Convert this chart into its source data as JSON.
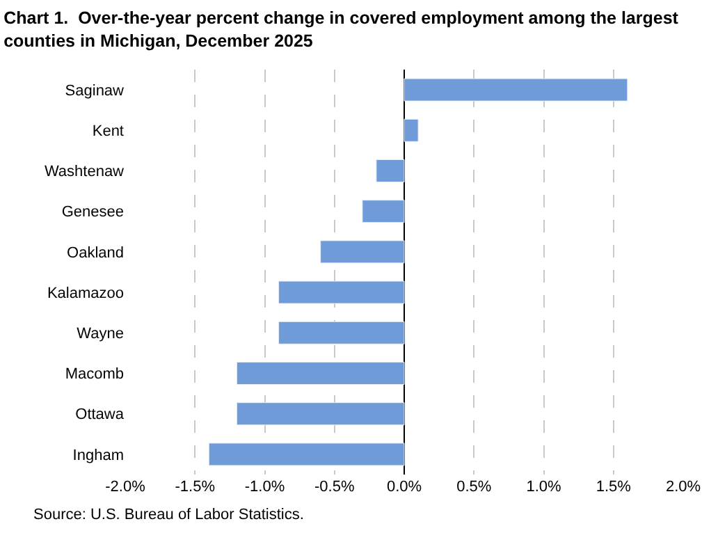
{
  "chart_data": {
    "type": "bar",
    "orientation": "horizontal",
    "title": "Chart 1.  Over-the-year percent change in covered employment among the largest counties in Michigan, December 2025",
    "categories": [
      "Saginaw",
      "Kent",
      "Washtenaw",
      "Genesee",
      "Oakland",
      "Kalamazoo",
      "Wayne",
      "Macomb",
      "Ottawa",
      "Ingham"
    ],
    "values": [
      1.6,
      0.1,
      -0.2,
      -0.3,
      -0.6,
      -0.9,
      -0.9,
      -1.2,
      -1.2,
      -1.4
    ],
    "color": "#6f9bd8",
    "xlim": [
      -2,
      2
    ],
    "xticks": [
      {
        "value": -2,
        "label": "-2.0%"
      },
      {
        "value": -1.5,
        "label": "-1.5%"
      },
      {
        "value": -1,
        "label": "-1.0%"
      },
      {
        "value": -0.5,
        "label": "-0.5%"
      },
      {
        "value": 0,
        "label": "0.0%"
      },
      {
        "value": 0.5,
        "label": "0.5%"
      },
      {
        "value": 1,
        "label": "1.0%"
      },
      {
        "value": 1.5,
        "label": "1.5%"
      },
      {
        "value": 2,
        "label": "2.0%"
      }
    ],
    "grid": "x",
    "annotations": [
      "Source: U.S. Bureau of Labor Statistics."
    ]
  }
}
